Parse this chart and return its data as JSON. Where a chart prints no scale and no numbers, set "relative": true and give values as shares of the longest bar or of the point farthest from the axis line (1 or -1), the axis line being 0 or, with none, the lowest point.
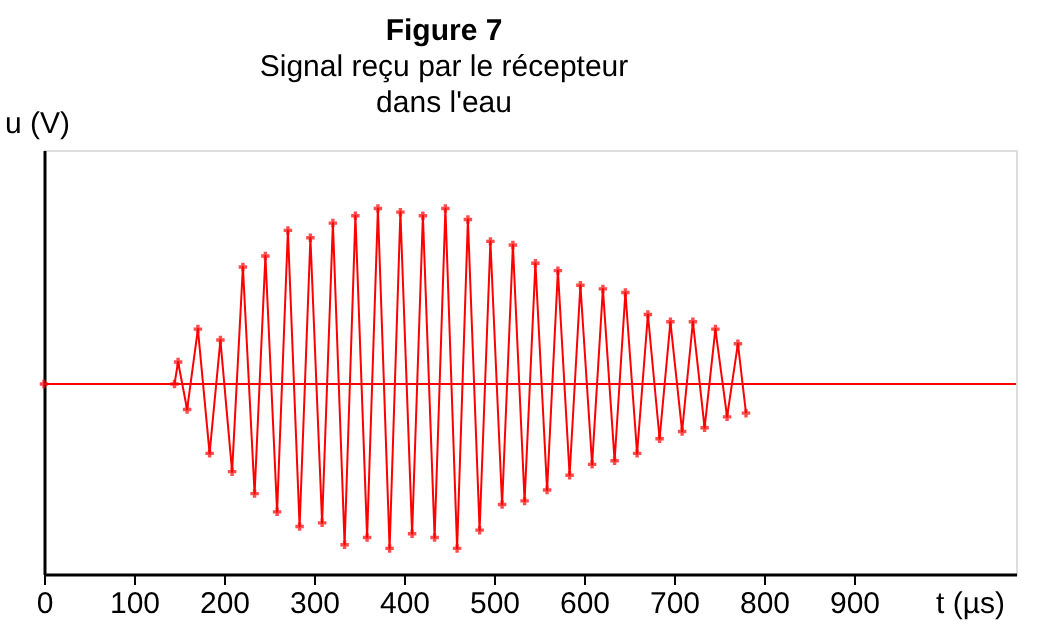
{
  "chart_data": {
    "type": "line",
    "title": "Figure 7",
    "subtitle": "Signal reçu par le récepteur\ndans l'eau",
    "xlabel": "t (µs)",
    "ylabel": "u (V)",
    "relative": true,
    "xlim": [
      0,
      1080
    ],
    "xticks": [
      0,
      100,
      200,
      300,
      400,
      500,
      600,
      700,
      800,
      900
    ],
    "grid": false,
    "marker": "cross",
    "line_style": "solid",
    "ref_lines": [
      {
        "axis": "y",
        "value": 0.52,
        "color": "#ff0000"
      }
    ],
    "series": [
      {
        "color": "#ff0000",
        "x": [
          0,
          145,
          149,
          159,
          171,
          184,
          196,
          209,
          221,
          234,
          246,
          259,
          271,
          284,
          296,
          309,
          321,
          334,
          346,
          359,
          371,
          384,
          396,
          409,
          421,
          434,
          446,
          459,
          471,
          484,
          496,
          509,
          521,
          534,
          546,
          559,
          571,
          584,
          596,
          609,
          621,
          634,
          646,
          659,
          671,
          684,
          696,
          709,
          721,
          734,
          746,
          759,
          771,
          780
        ],
        "values": [
          0.52,
          0.52,
          0.58,
          0.45,
          0.67,
          0.33,
          0.64,
          0.28,
          0.84,
          0.22,
          0.87,
          0.17,
          0.94,
          0.13,
          0.92,
          0.14,
          0.96,
          0.08,
          0.98,
          0.1,
          1.0,
          0.07,
          0.99,
          0.11,
          0.98,
          0.1,
          1.0,
          0.07,
          0.97,
          0.12,
          0.91,
          0.19,
          0.9,
          0.2,
          0.85,
          0.23,
          0.83,
          0.27,
          0.79,
          0.3,
          0.78,
          0.31,
          0.77,
          0.33,
          0.71,
          0.37,
          0.69,
          0.39,
          0.69,
          0.4,
          0.67,
          0.43,
          0.63,
          0.44
        ]
      }
    ]
  }
}
